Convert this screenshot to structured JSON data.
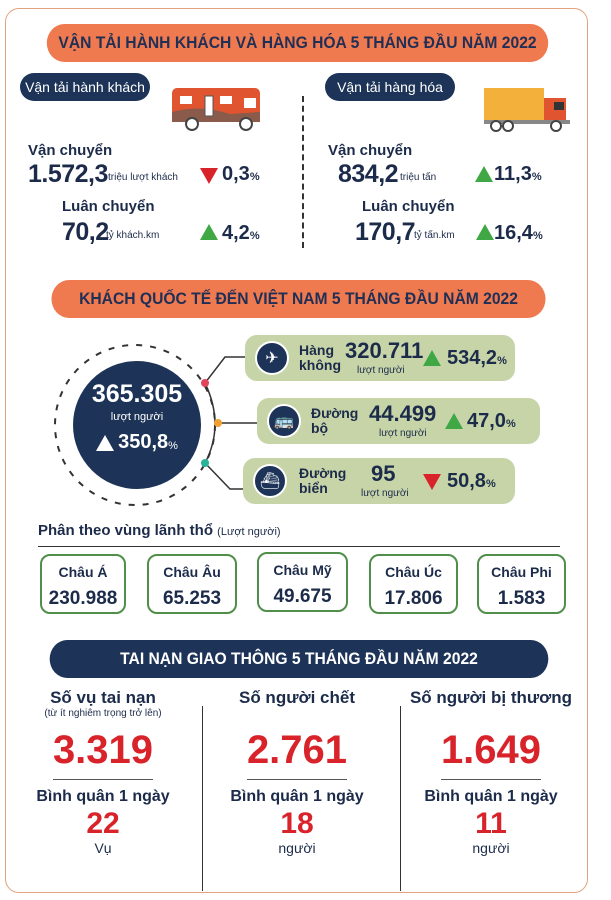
{
  "colors": {
    "accent": "#f07a50",
    "navy": "#1d3458",
    "green_box": "#c6d4a8",
    "up": "#3fa845",
    "down": "#d8232a"
  },
  "transport": {
    "title": "VẬN TẢI HÀNH KHÁCH VÀ HÀNG HÓA 5 THÁNG ĐẦU NĂM 2022",
    "passenger": {
      "label": "Vận tải hành khách",
      "icon": "bus-icon",
      "carry": {
        "label": "Vận chuyển",
        "value": "1.572,3",
        "unit": "triệu lượt khách",
        "direction": "down",
        "pct": "0,3",
        "pct_sign": "%"
      },
      "rotation": {
        "label": "Luân chuyển",
        "value": "70,2",
        "unit": "tỷ khách.km",
        "direction": "up",
        "pct": "4,2",
        "pct_sign": "%"
      }
    },
    "cargo": {
      "label": "Vận tải hàng hóa",
      "icon": "truck-icon",
      "carry": {
        "label": "Vận chuyển",
        "value": "834,2",
        "unit": "triệu tấn",
        "direction": "up",
        "pct": "11,3",
        "pct_sign": "%"
      },
      "rotation": {
        "label": "Luân chuyển",
        "value": "170,7",
        "unit": "tỷ tấn.km",
        "direction": "up",
        "pct": "16,4",
        "pct_sign": "%"
      }
    }
  },
  "visitors": {
    "title": "KHÁCH QUỐC TẾ ĐẾN VIỆT NAM 5 THÁNG ĐẦU NĂM 2022",
    "total": {
      "value": "365.305",
      "unit": "lượt người",
      "direction": "up",
      "pct": "350,8",
      "pct_sign": "%"
    },
    "modes": [
      {
        "line1": "Hàng",
        "line2": "không",
        "value": "320.711",
        "unit": "lượt người",
        "direction": "up",
        "pct": "534,2",
        "pct_sign": "%",
        "icon": "airplane-icon"
      },
      {
        "line1": "Đường",
        "line2": "bộ",
        "value": "44.499",
        "unit": "lượt người",
        "direction": "up",
        "pct": "47,0",
        "pct_sign": "%",
        "icon": "bus-icon"
      },
      {
        "line1": "Đường",
        "line2": "biển",
        "value": "95",
        "unit": "lượt người",
        "direction": "down",
        "pct": "50,8",
        "pct_sign": "%",
        "icon": "ship-icon"
      }
    ],
    "region_title": "Phân theo vùng lãnh thổ",
    "region_unit": "(Lượt người)",
    "regions": [
      {
        "name": "Châu Á",
        "value": "230.988"
      },
      {
        "name": "Châu Âu",
        "value": "65.253"
      },
      {
        "name": "Châu Mỹ",
        "value": "49.675"
      },
      {
        "name": "Châu Úc",
        "value": "17.806"
      },
      {
        "name": "Châu Phi",
        "value": "1.583"
      }
    ]
  },
  "accidents": {
    "title": "TAI NẠN GIAO THÔNG 5 THÁNG ĐẦU NĂM 2022",
    "columns": [
      {
        "title": "Số vụ tai nạn",
        "subtitle": "(từ ít nghiêm trọng trở lên)",
        "value": "3.319",
        "avg_label": "Bình quân 1 ngày",
        "avg": "22",
        "unit": "Vụ"
      },
      {
        "title": "Số người chết",
        "subtitle": "",
        "value": "2.761",
        "avg_label": "Bình quân 1 ngày",
        "avg": "18",
        "unit": "người"
      },
      {
        "title": "Số người bị thương",
        "subtitle": "",
        "value": "1.649",
        "avg_label": "Bình quân 1 ngày",
        "avg": "11",
        "unit": "người"
      }
    ]
  }
}
